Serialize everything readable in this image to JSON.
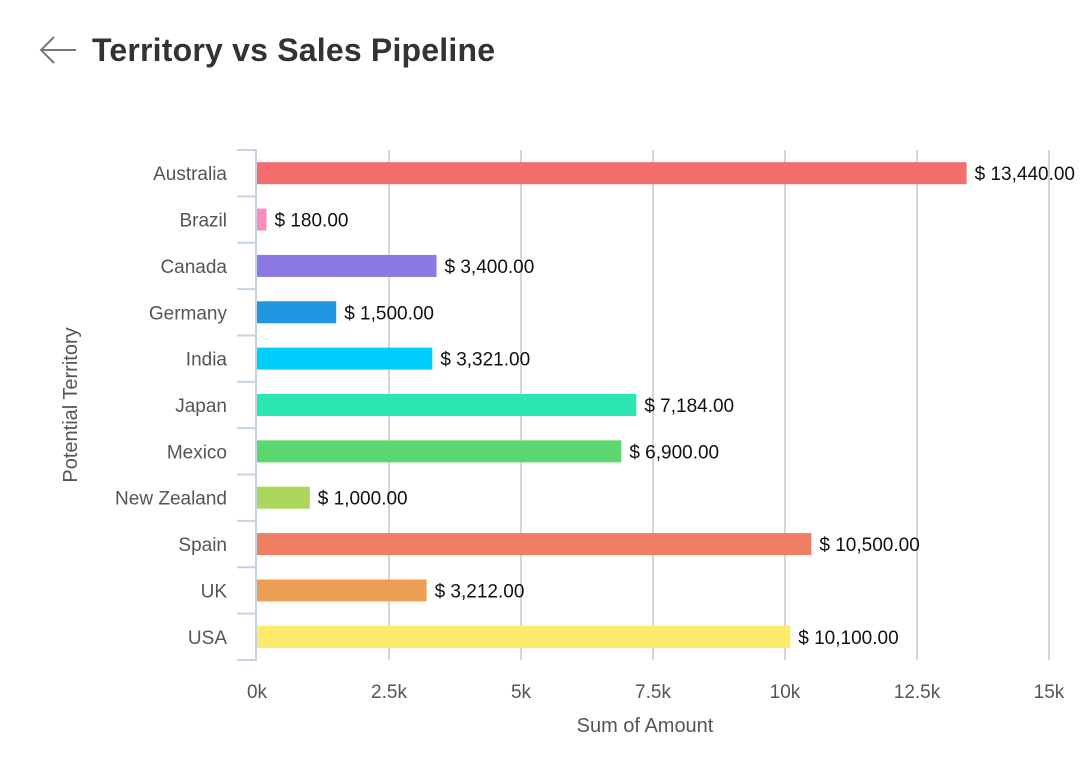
{
  "header": {
    "title": "Territory vs Sales Pipeline",
    "back_icon": "arrow-left-icon"
  },
  "chart_data": {
    "type": "bar",
    "orientation": "horizontal",
    "title": "Territory vs Sales Pipeline",
    "xlabel": "Sum of Amount",
    "ylabel": "Potential Territory",
    "xlim": [
      0,
      15000
    ],
    "x_ticks": [
      0,
      2500,
      5000,
      7500,
      10000,
      12500,
      15000
    ],
    "x_tick_labels": [
      "0k",
      "2.5k",
      "5k",
      "7.5k",
      "10k",
      "12.5k",
      "15k"
    ],
    "grid": true,
    "legend": "none",
    "categories": [
      "Australia",
      "Brazil",
      "Canada",
      "Germany",
      "India",
      "Japan",
      "Mexico",
      "New Zealand",
      "Spain",
      "UK",
      "USA"
    ],
    "values": [
      13440,
      180,
      3400,
      1500,
      3321,
      7184,
      6900,
      1000,
      10500,
      3212,
      10100
    ],
    "data_labels": [
      "$ 13,440.00",
      "$ 180.00",
      "$ 3,400.00",
      "$ 1,500.00",
      "$ 3,321.00",
      "$ 7,184.00",
      "$ 6,900.00",
      "$ 1,000.00",
      "$ 10,500.00",
      "$ 3,212.00",
      "$ 10,100.00"
    ],
    "colors": [
      "#f46d6d",
      "#f78fbd",
      "#8b78e0",
      "#2196e0",
      "#00cffc",
      "#2be6b0",
      "#5cd66e",
      "#acd65c",
      "#f07e62",
      "#eda055",
      "#fde96a"
    ]
  }
}
